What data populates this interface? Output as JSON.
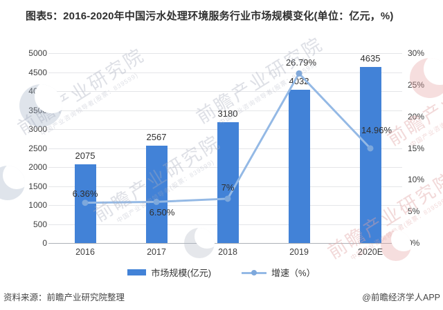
{
  "title": "图表5：2016-2020年中国污水处理环境服务行业市场规模变化(单位：亿元，%)",
  "footer": {
    "source": "资料来源：前瞻产业研究院整理",
    "credit": "@前瞻经济学人APP"
  },
  "watermark": {
    "text": "前瞻产业研究院",
    "subtext": "中国产业咨询领导者(股票：839599)"
  },
  "chart_data": {
    "type": "bar+line",
    "categories": [
      "2016",
      "2017",
      "2018",
      "2019",
      "2020E"
    ],
    "series": [
      {
        "name": "市场规模(亿元)",
        "type": "bar",
        "axis": "left",
        "color": "#4282d7",
        "values": [
          2075,
          2567,
          3180,
          4032,
          4635
        ],
        "labels": [
          "2075",
          "2567",
          "3180",
          "4032",
          "4635"
        ]
      },
      {
        "name": "增速（%）",
        "type": "line",
        "axis": "right",
        "color": "#94b9e5",
        "marker_color": "#7da8dc",
        "values": [
          6.36,
          6.5,
          7,
          26.79,
          14.96
        ],
        "labels": [
          "6.36%",
          "6.50%",
          "7%",
          "26.79%",
          "14.96%"
        ]
      }
    ],
    "left_axis": {
      "min": 0,
      "max": 5000,
      "ticks": [
        "0",
        "500",
        "1000",
        "1500",
        "2000",
        "2500",
        "3000",
        "3500",
        "4000",
        "4500",
        "5000"
      ]
    },
    "right_axis": {
      "min": 0,
      "max": 30,
      "ticks": [
        "0%",
        "5%",
        "10%",
        "15%",
        "20%",
        "25%",
        "30%"
      ]
    },
    "grid": true,
    "legend_position": "bottom"
  }
}
